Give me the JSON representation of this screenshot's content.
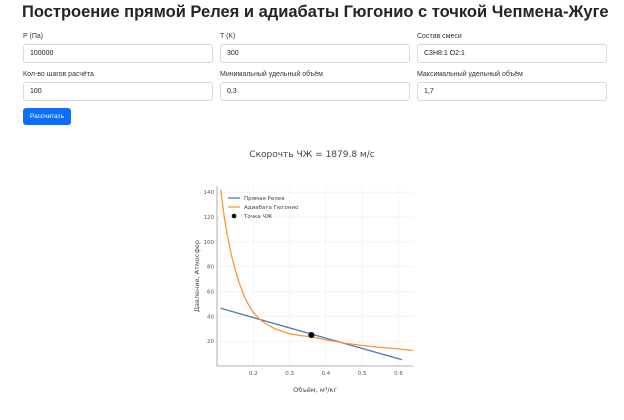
{
  "page": {
    "title": "Построение прямой Релея и адиабаты Гюгонио с точкой Чепмена-Жуге"
  },
  "form": {
    "pressure": {
      "label": "P (Па)",
      "value": "100000"
    },
    "temperature": {
      "label": "T (K)",
      "value": "300"
    },
    "mixture": {
      "label": "Состав смеси",
      "value": "C3H8:1 O2:1"
    },
    "steps": {
      "label": "Кол-во шагов расчёта",
      "value": "100"
    },
    "min_volume": {
      "label": "Минимальный удельный объём",
      "value": "0,3"
    },
    "max_volume": {
      "label": "Максимальный удельный объём",
      "value": "1,7"
    },
    "submit_label": "Рассчитать"
  },
  "result": {
    "speed_text": "Скорочть ЧЖ = 1879.8 м/с"
  },
  "chart_data": {
    "type": "line",
    "title": "",
    "xlabel": "Объём, м³/кг",
    "ylabel": "Давление, Атмосфер",
    "xlim": [
      0.1,
      0.64
    ],
    "ylim": [
      0,
      145
    ],
    "xticks": [
      0.2,
      0.3,
      0.4,
      0.5,
      0.6
    ],
    "yticks": [
      20,
      40,
      60,
      80,
      100,
      120,
      140
    ],
    "grid": true,
    "legend_position": "top-left",
    "series": [
      {
        "name": "Прямая Релея",
        "color": "#4c78c0",
        "kind": "line",
        "x": [
          0.11,
          0.61
        ],
        "y": [
          46.5,
          5.0
        ]
      },
      {
        "name": "Адиабата Гюгонио",
        "color": "#ff9430",
        "kind": "line",
        "x": [
          0.11,
          0.12,
          0.13,
          0.14,
          0.15,
          0.16,
          0.17,
          0.18,
          0.2,
          0.22,
          0.24,
          0.26,
          0.28,
          0.3,
          0.33,
          0.36,
          0.4,
          0.45,
          0.5,
          0.55,
          0.6,
          0.64
        ],
        "y": [
          142,
          120,
          103,
          89,
          78,
          68,
          60,
          53,
          43,
          37,
          33,
          30,
          28,
          26,
          24.5,
          23.5,
          21.0,
          18.5,
          16.5,
          15.0,
          13.8,
          12.5
        ]
      },
      {
        "name": "Точка ЧЖ",
        "color": "#000000",
        "kind": "point",
        "x": [
          0.36
        ],
        "y": [
          25.0
        ]
      }
    ]
  }
}
